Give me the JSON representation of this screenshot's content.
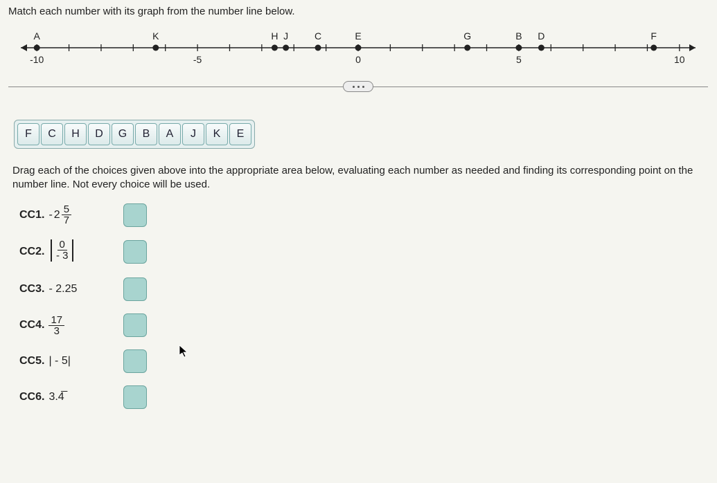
{
  "instruction": "Match each number with its graph from the number line below.",
  "numberline": {
    "xmin": -10.5,
    "xmax": 10.5,
    "tick_step": 1,
    "major_labels": [
      {
        "x": -10,
        "text": "-10"
      },
      {
        "x": -5,
        "text": "-5"
      },
      {
        "x": 0,
        "text": "0"
      },
      {
        "x": 5,
        "text": "5"
      },
      {
        "x": 10,
        "text": "10"
      }
    ],
    "label_above_y_offset": -12,
    "label_below_y_offset": 18,
    "axis_color": "#222222",
    "tick_color": "#222222",
    "point_radius": 4.5,
    "point_color": "#222222",
    "label_fontsize": 14,
    "points": [
      {
        "letter": "A",
        "x": -10
      },
      {
        "letter": "K",
        "x": -6.3
      },
      {
        "letter": "H",
        "x": -2.6
      },
      {
        "letter": "J",
        "x": -2.25
      },
      {
        "letter": "C",
        "x": -1.25
      },
      {
        "letter": "E",
        "x": 0
      },
      {
        "letter": "G",
        "x": 3.4
      },
      {
        "letter": "B",
        "x": 5
      },
      {
        "letter": "D",
        "x": 5.7
      },
      {
        "letter": "F",
        "x": 9.2
      }
    ]
  },
  "tiles": [
    "F",
    "C",
    "H",
    "D",
    "G",
    "B",
    "A",
    "J",
    "K",
    "E"
  ],
  "drag_text": "Drag each of the choices given above into the appropriate area below, evaluating each number as needed and finding its corresponding point on the number line. Not every choice will be used.",
  "items": [
    {
      "id": "CC1.",
      "type": "mixed",
      "neg": true,
      "whole": "2",
      "num": "5",
      "den": "7"
    },
    {
      "id": "CC2.",
      "type": "absfrac",
      "num": "0",
      "den": "- 3"
    },
    {
      "id": "CC3.",
      "type": "plain",
      "text": "- 2.25"
    },
    {
      "id": "CC4.",
      "type": "frac",
      "num": "17",
      "den": "3"
    },
    {
      "id": "CC5.",
      "type": "plain",
      "text": "| - 5|"
    },
    {
      "id": "CC6.",
      "type": "plain",
      "text": "3.4̅"
    }
  ],
  "colors": {
    "background": "#f5f5f0",
    "tile_bg_top": "#f8fbfb",
    "tile_bg_bot": "#dceaea",
    "tile_border": "#77aaaa",
    "dropzone_bg": "#a8d4cf",
    "dropzone_border": "#6aa49e"
  }
}
